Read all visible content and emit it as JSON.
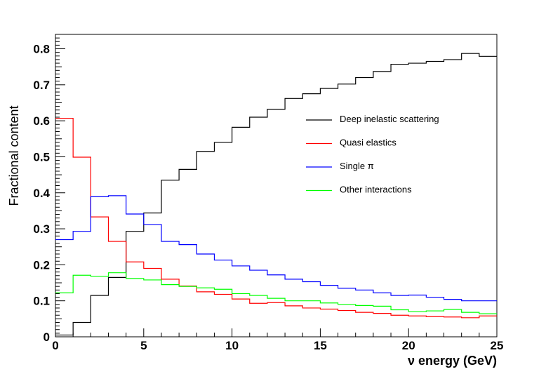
{
  "chart_data": {
    "type": "histogram-step",
    "xlabel": "ν energy (GeV)",
    "ylabel": "Fractional content",
    "xlim": [
      0,
      25
    ],
    "ylim": [
      0,
      0.84
    ],
    "bin_width": 1,
    "x_ticks": [
      0,
      5,
      10,
      15,
      20,
      25
    ],
    "x_tick_labels": [
      "0",
      "5",
      "10",
      "15",
      "20",
      "25"
    ],
    "y_ticks": [
      0,
      0.1,
      0.2,
      0.3,
      0.4,
      0.5,
      0.6,
      0.7,
      0.8
    ],
    "y_tick_labels": [
      "0",
      "0.1",
      "0.2",
      "0.3",
      "0.4",
      "0.5",
      "0.6",
      "0.7",
      "0.8"
    ],
    "legend_position": "center-right",
    "series": [
      {
        "name": "Deep inelastic scattering",
        "color": "#000000",
        "values": [
          0.005,
          0.04,
          0.115,
          0.165,
          0.293,
          0.344,
          0.435,
          0.465,
          0.515,
          0.54,
          0.582,
          0.61,
          0.632,
          0.662,
          0.675,
          0.69,
          0.702,
          0.72,
          0.737,
          0.757,
          0.76,
          0.765,
          0.77,
          0.787,
          0.779
        ]
      },
      {
        "name": "Quasi elastics",
        "color": "#ff0000",
        "values": [
          0.607,
          0.499,
          0.333,
          0.265,
          0.208,
          0.19,
          0.16,
          0.141,
          0.125,
          0.118,
          0.105,
          0.093,
          0.095,
          0.086,
          0.08,
          0.077,
          0.073,
          0.068,
          0.065,
          0.06,
          0.058,
          0.056,
          0.055,
          0.053,
          0.058
        ]
      },
      {
        "name": "Single π",
        "color": "#0000ff",
        "values": [
          0.27,
          0.293,
          0.389,
          0.392,
          0.341,
          0.312,
          0.265,
          0.256,
          0.23,
          0.213,
          0.197,
          0.185,
          0.172,
          0.16,
          0.153,
          0.143,
          0.135,
          0.13,
          0.122,
          0.115,
          0.116,
          0.11,
          0.104,
          0.1,
          0.1
        ]
      },
      {
        "name": "Other interactions",
        "color": "#00ff00",
        "values": [
          0.122,
          0.171,
          0.168,
          0.178,
          0.162,
          0.158,
          0.145,
          0.14,
          0.136,
          0.132,
          0.12,
          0.115,
          0.107,
          0.1,
          0.1,
          0.094,
          0.09,
          0.087,
          0.085,
          0.075,
          0.07,
          0.072,
          0.076,
          0.068,
          0.064
        ]
      }
    ]
  }
}
